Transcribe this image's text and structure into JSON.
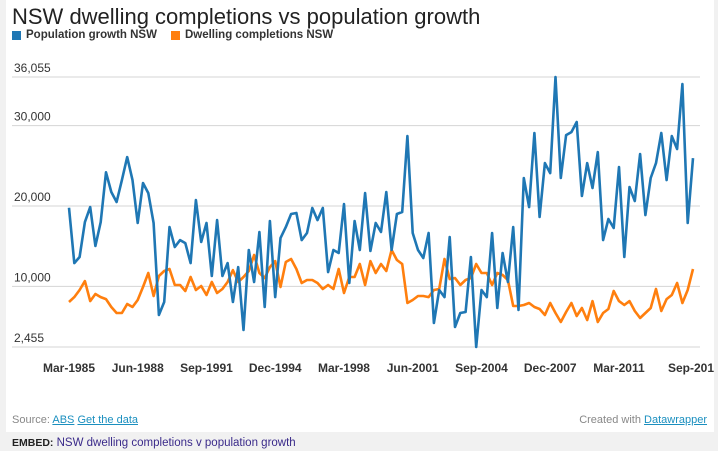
{
  "chart_data": {
    "type": "line",
    "title": "NSW dwelling completions vs population growth",
    "legend_placement": "top-left",
    "grid": true,
    "ylim": [
      2455,
      36055
    ],
    "y_ticks": [
      "36,055",
      "30,000",
      "20,000",
      "10,000",
      "2,455"
    ],
    "y_tick_values": [
      36055,
      30000,
      20000,
      10000,
      2455
    ],
    "x_start": "Mar-1985",
    "x_frequency": "quarterly",
    "x_tick_labels": [
      "Mar-1985",
      "Jun-1988",
      "Sep-1991",
      "Dec-1994",
      "Mar-1998",
      "Jun-2001",
      "Sep-2004",
      "Dec-2007",
      "Mar-2011",
      "Sep-201"
    ],
    "x_tick_index": [
      0,
      13,
      26,
      39,
      52,
      65,
      78,
      91,
      104,
      118
    ],
    "series": [
      {
        "name": "Population growth NSW",
        "color": "#1f77b4",
        "values": [
          19780,
          12900,
          13650,
          18000,
          19870,
          15020,
          18000,
          24200,
          21740,
          20500,
          23230,
          26090,
          23230,
          17880,
          22860,
          21610,
          17880,
          6440,
          8050,
          17380,
          14900,
          15760,
          15390,
          12900,
          20740,
          15520,
          17880,
          11290,
          18250,
          11290,
          12900,
          8050,
          12400,
          4570,
          14520,
          10540,
          16760,
          7430,
          18130,
          8670,
          16010,
          17380,
          19000,
          19130,
          15760,
          16640,
          19750,
          18250,
          19750,
          11780,
          14520,
          14150,
          20240,
          10420,
          18130,
          14520,
          21610,
          14400,
          17880,
          16760,
          21740,
          14520,
          19000,
          19250,
          28700,
          16640,
          14520,
          13530,
          16640,
          5440,
          9550,
          8670,
          16140,
          4940,
          6680,
          6810,
          13650,
          2455,
          9550,
          8670,
          16640,
          7310,
          14150,
          10540,
          17380,
          7060,
          23480,
          19870,
          29080,
          18630,
          25340,
          24100,
          36055,
          23480,
          28830,
          29200,
          30450,
          21240,
          25340,
          22240,
          26710,
          15760,
          18380,
          17260,
          24850,
          13650,
          22360,
          20620,
          26470,
          18870,
          23480,
          25340,
          29080,
          23230,
          28700,
          27090,
          35170,
          17880,
          25960
        ]
      },
      {
        "name": "Dwelling completions NSW",
        "color": "#ff7f0e",
        "values": [
          8050,
          8670,
          9550,
          10660,
          8170,
          9050,
          8670,
          8420,
          7430,
          6680,
          6680,
          7800,
          7430,
          8300,
          9920,
          11660,
          8800,
          11290,
          11910,
          12160,
          10170,
          10170,
          9420,
          11160,
          9550,
          10040,
          8920,
          10540,
          9170,
          9670,
          10540,
          12030,
          10540,
          11160,
          11910,
          13900,
          11660,
          11040,
          12400,
          13150,
          9920,
          13030,
          13400,
          12160,
          10420,
          10790,
          10790,
          10420,
          9670,
          10170,
          9670,
          12160,
          9170,
          11160,
          11160,
          12780,
          10170,
          13150,
          11660,
          12780,
          11910,
          14520,
          13280,
          12780,
          7930,
          8300,
          8800,
          8800,
          8670,
          9550,
          9670,
          13400,
          10910,
          11040,
          10170,
          10790,
          11040,
          12780,
          11660,
          11660,
          10170,
          11660,
          11410,
          10790,
          7560,
          7560,
          7680,
          7930,
          7430,
          7180,
          6440,
          7930,
          6680,
          5570,
          6810,
          7930,
          6310,
          7310,
          5820,
          8170,
          5570,
          6680,
          7180,
          9420,
          8170,
          7680,
          8170,
          6930,
          6060,
          6680,
          7310,
          9670,
          6930,
          8420,
          8920,
          10420,
          7930,
          9550,
          12160
        ]
      }
    ]
  },
  "footer": {
    "source_label": "Source:",
    "source_link": "ABS",
    "data_link": "Get the data",
    "created_label": "Created with",
    "created_link": "Datawrapper"
  },
  "embed": {
    "label": "EMBED:",
    "text": "NSW dwelling completions v population growth"
  }
}
